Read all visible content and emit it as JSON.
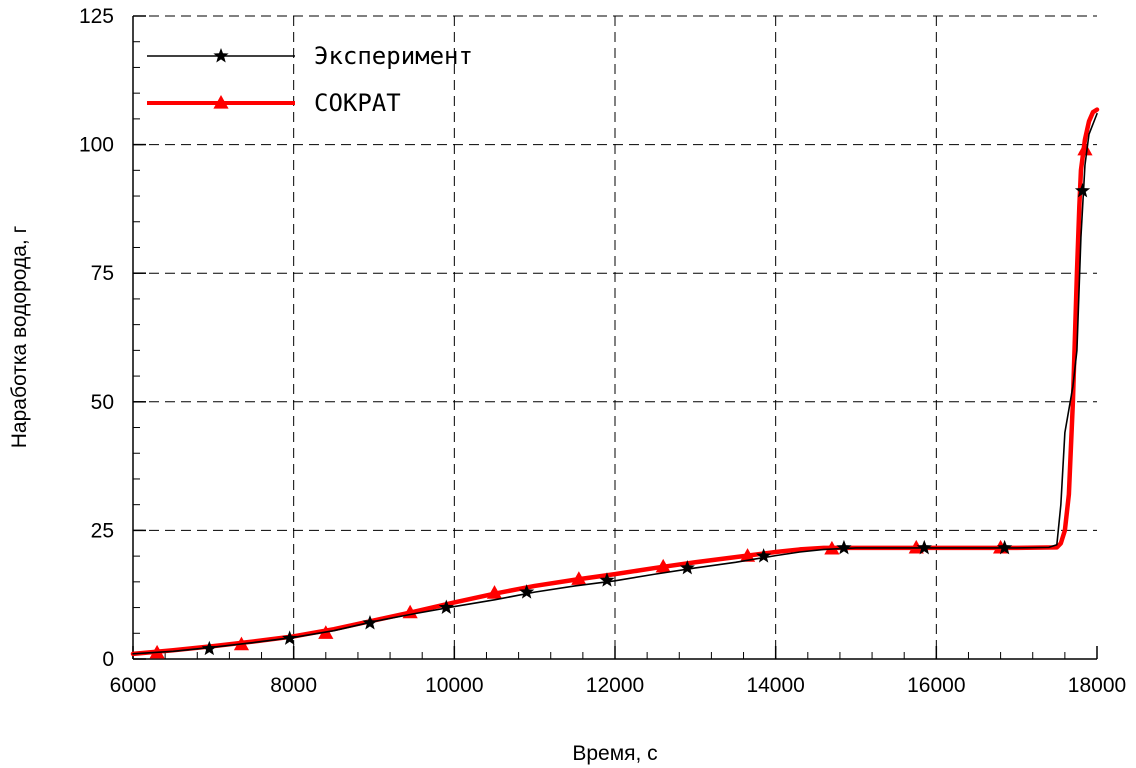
{
  "chart_data": {
    "type": "line",
    "xlabel": "Время, с",
    "ylabel": "Наработка водорода, г",
    "xlim": [
      6000,
      18000
    ],
    "ylim": [
      0,
      125
    ],
    "x_ticks": [
      6000,
      8000,
      10000,
      12000,
      14000,
      16000,
      18000
    ],
    "y_ticks": [
      0,
      25,
      50,
      75,
      100,
      125
    ],
    "x_tick_labels": [
      "6000",
      "8000",
      "10000",
      "12000",
      "14000",
      "16000",
      "18000"
    ],
    "y_tick_labels": [
      "0",
      "25",
      "50",
      "75",
      "100",
      "125"
    ],
    "grid": "dashed, at major ticks",
    "legend_position": "top-left",
    "series": [
      {
        "name": "Эксперимент",
        "color": "#000000",
        "marker": "star",
        "curve": {
          "x": [
            6000,
            6500,
            7000,
            7500,
            8000,
            8500,
            9000,
            9500,
            10000,
            10500,
            11000,
            11500,
            12000,
            12500,
            13000,
            13500,
            14000,
            14300,
            14600,
            15000,
            16000,
            17000,
            17400,
            17500,
            17550,
            17600,
            17700,
            17750,
            17800,
            17850,
            17900,
            18000
          ],
          "y": [
            1,
            1.5,
            2.3,
            3.2,
            4.2,
            5.5,
            7.3,
            8.8,
            10.2,
            11.5,
            13.0,
            14.2,
            15.2,
            16.5,
            17.7,
            18.8,
            20.1,
            20.8,
            21.3,
            21.6,
            21.6,
            21.6,
            21.7,
            22.2,
            30,
            44,
            53,
            60,
            82,
            96,
            102,
            106
          ]
        },
        "markers": {
          "x": [
            6950,
            7950,
            8950,
            9900,
            10900,
            11900,
            12900,
            13850,
            14850,
            15850,
            16850,
            17820
          ],
          "y": [
            2,
            4,
            7,
            10,
            13,
            15.3,
            17.7,
            20,
            21.6,
            21.6,
            21.6,
            91
          ]
        }
      },
      {
        "name": "СОКРАТ",
        "color": "#ff0000",
        "marker": "triangle",
        "curve": {
          "x": [
            6000,
            6500,
            7000,
            7500,
            8000,
            8500,
            9000,
            9500,
            10000,
            10500,
            11000,
            11500,
            12000,
            12500,
            13000,
            13500,
            14000,
            14300,
            14600,
            15000,
            16000,
            17000,
            17500,
            17550,
            17600,
            17650,
            17700,
            17750,
            17780,
            17800,
            17850,
            17900,
            17950,
            18000
          ],
          "y": [
            1,
            1.7,
            2.5,
            3.4,
            4.4,
            5.8,
            7.5,
            9.2,
            11.0,
            12.7,
            14.2,
            15.4,
            16.5,
            17.7,
            18.8,
            19.8,
            20.8,
            21.3,
            21.6,
            21.6,
            21.6,
            21.6,
            21.7,
            22.5,
            25,
            32,
            50,
            75,
            88,
            95,
            101,
            104.5,
            106.3,
            106.8
          ]
        },
        "markers": {
          "x": [
            6300,
            7350,
            8400,
            9450,
            10500,
            11550,
            12600,
            13650,
            14700,
            15750,
            16800,
            17850
          ],
          "y": [
            1.2,
            2.8,
            5,
            9,
            12.8,
            15.5,
            17.9,
            20,
            21.4,
            21.6,
            21.6,
            99
          ]
        }
      }
    ]
  }
}
